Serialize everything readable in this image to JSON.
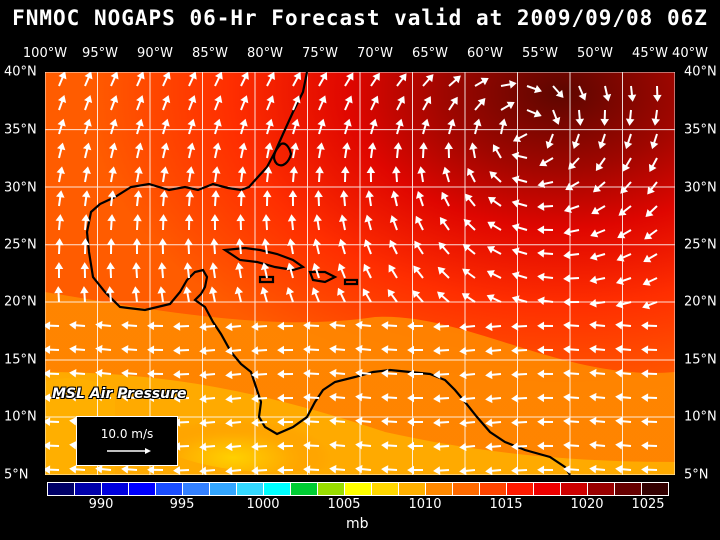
{
  "title": "FNMOC NOGAPS 06-Hr Forecast valid at 2009/09/08 06Z",
  "longitude_labels": [
    "100°W",
    "95°W",
    "90°W",
    "85°W",
    "80°W",
    "75°W",
    "70°W",
    "65°W",
    "60°W",
    "55°W",
    "50°W",
    "45°W",
    "40°W"
  ],
  "latitude_labels": [
    "40°N",
    "35°N",
    "30°N",
    "25°N",
    "20°N",
    "15°N",
    "10°N",
    "5°N"
  ],
  "field_label": "MSL Air Pressure",
  "reference_vector": {
    "label": "10.0 m/s"
  },
  "colorbar": {
    "colors": [
      "#000066",
      "#0000aa",
      "#0000dd",
      "#0000ff",
      "#1a4dff",
      "#3380ff",
      "#33a6ff",
      "#33d9ff",
      "#00ffff",
      "#00cc33",
      "#99dd00",
      "#ffff00",
      "#ffd700",
      "#ffb000",
      "#ff8800",
      "#ff6a00",
      "#ff4400",
      "#ff1a00",
      "#ee0000",
      "#cc0000",
      "#990000",
      "#660000",
      "#330000"
    ],
    "tick_labels": [
      "990",
      "995",
      "1000",
      "1005",
      "1010",
      "1015",
      "1020",
      "1025"
    ],
    "units": "mb"
  },
  "colors": {
    "high_pressure": "#660000",
    "mid_pressure": "#ff4400",
    "low_pressure": "#ffd700"
  },
  "map_extent": {
    "lon_min": -100,
    "lon_max": -40,
    "lat_min": 5,
    "lat_max": 40
  }
}
